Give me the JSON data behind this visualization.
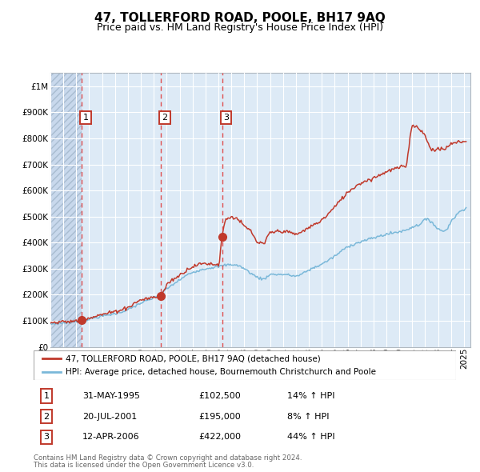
{
  "title": "47, TOLLERFORD ROAD, POOLE, BH17 9AQ",
  "subtitle": "Price paid vs. HM Land Registry's House Price Index (HPI)",
  "legend_line1": "47, TOLLERFORD ROAD, POOLE, BH17 9AQ (detached house)",
  "legend_line2": "HPI: Average price, detached house, Bournemouth Christchurch and Poole",
  "footer1": "Contains HM Land Registry data © Crown copyright and database right 2024.",
  "footer2": "This data is licensed under the Open Government Licence v3.0.",
  "sale_points": [
    {
      "label": "1",
      "date": "31-MAY-1995",
      "price": 102500,
      "pct": "14%",
      "dir": "↑",
      "x_year": 1995.42
    },
    {
      "label": "2",
      "date": "20-JUL-2001",
      "price": 195000,
      "pct": "8%",
      "dir": "↑",
      "x_year": 2001.55
    },
    {
      "label": "3",
      "date": "12-APR-2006",
      "price": 422000,
      "pct": "44%",
      "dir": "↑",
      "x_year": 2006.28
    }
  ],
  "hpi_color": "#7ab8d9",
  "price_color": "#c0392b",
  "dashed_color": "#e05050",
  "bg_color": "#ddeaf6",
  "hatch_bg_color": "#c8d8ec",
  "grid_color": "#ffffff",
  "border_color": "#b0b8c0",
  "ylim": [
    0,
    1050000
  ],
  "yticks": [
    0,
    100000,
    200000,
    300000,
    400000,
    500000,
    600000,
    700000,
    800000,
    900000,
    1000000
  ],
  "xlim_left": 1993.0,
  "xlim_right": 2025.5,
  "title_fontsize": 11,
  "subtitle_fontsize": 9,
  "tick_fontsize": 7.5,
  "ytick_fontsize": 7.5
}
